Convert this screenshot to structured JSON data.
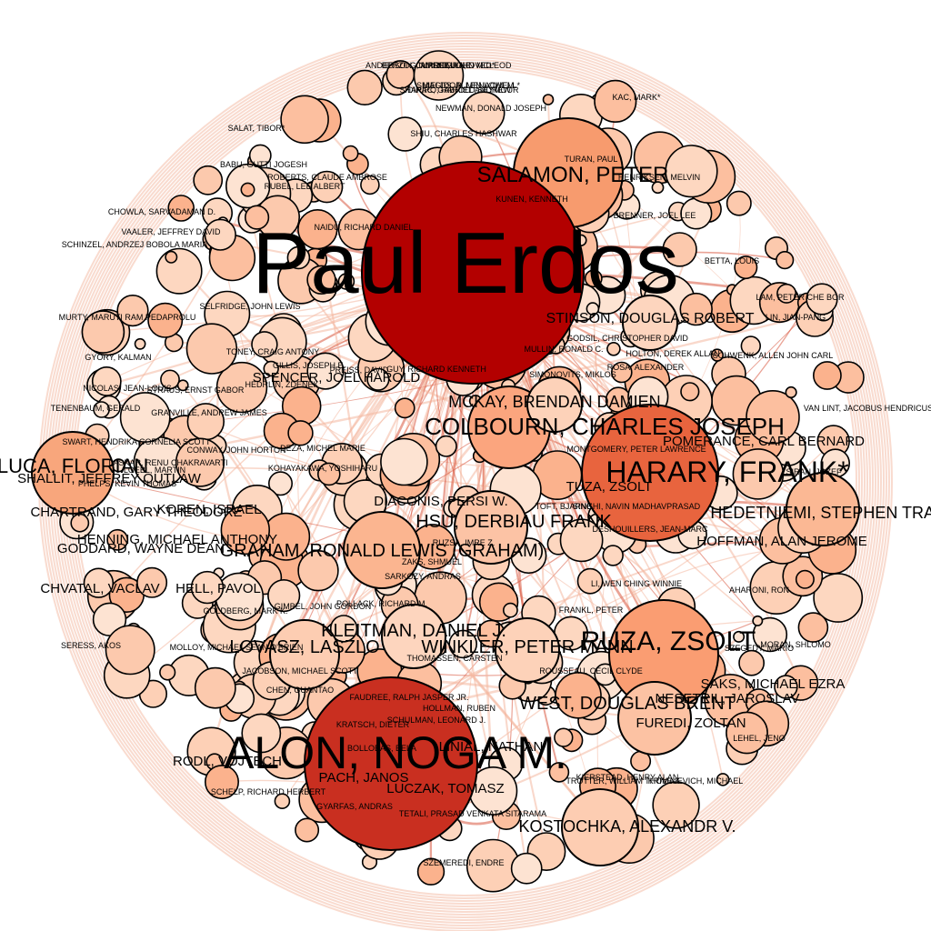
{
  "graph": {
    "center": {
      "label": "Paul Erdos",
      "color": "#b30000"
    },
    "colors": {
      "node_light": "#fdd7c0",
      "node_mid": "#fc9a70",
      "node_dark": "#e35a3a",
      "edge": "#f4b8a0"
    },
    "hubs": [
      {
        "label": "ALON, NOGA M.",
        "color": "#c92f20"
      },
      {
        "label": "SALAMON, PETER",
        "color": "#f79b6e"
      },
      {
        "label": "HARARY, FRANK*",
        "color": "#e8643e"
      },
      {
        "label": "COLBOURN, CHARLES JOSEPH",
        "color": "#fba57e"
      },
      {
        "label": "RUZA, ZSOLT",
        "color": "#fa9d72"
      },
      {
        "label": "LUCA, FLORIAN",
        "color": "#f8a67c"
      },
      {
        "label": "HEDETNIEMI, STEPHEN TRAV",
        "color": "#fbb894"
      },
      {
        "label": "WEST, DOUGLAS BRENT",
        "color": "#fcc2a3"
      },
      {
        "label": "GRAHAM, RONALD LEWIS (GRAHAM)",
        "color": "#fbb590"
      },
      {
        "label": "HSU, DERBIAU FRANK",
        "color": "#fcc3a5"
      },
      {
        "label": "KOSTOCHKA, ALEXANDR V.",
        "color": "#fdcdb2"
      },
      {
        "label": "LOVASZ, LASZLO",
        "color": "#fdcdb2"
      },
      {
        "label": "STINSON, DOUGLAS ROBERT",
        "color": "#fdd5be"
      },
      {
        "label": "KLEITMAN, DANIEL J.",
        "color": "#fdd5be"
      },
      {
        "label": "MCKAY, BRENDAN DAMIEN",
        "color": "#fdd2b9"
      },
      {
        "label": "WINKLER, PETER MANN",
        "color": "#fdd2b9"
      }
    ],
    "labels": [
      "SHIGHA, OVED*",
      "ANDERSON, JAMES MILNE",
      "SHIELDS, ALLEN LOWELL*",
      "SHAPIRO, HAROLD SEYMOUR",
      "KAC, MARK*",
      "SALAT, TIBOR*",
      "NEWMAN, DONALD JOSEPH",
      "SHIU, CHARLES HASHWAR",
      "HENRIKSEN, MELVIN",
      "RUBEL, LEE ALBERT",
      "BABU, GUTTI JOGESH",
      "ROBERTS, CLAUDE AMBROSE",
      "TURAN, PAUL",
      "CHOWLA, SARVADAMAN D.",
      "KUNEN, KENNETH",
      "SCHINZEL, ANDRZEJ BOBOLA MARIA",
      "VAALER, JEFFREY DAVID",
      "NAIDU, RICHARD DANIEL",
      "BRENNER, JOEL LEE",
      "BETTA, LOUIS",
      "LAM, PETER CHE BOR",
      "MURTY, MARUTI RAM PEDAPROLU",
      "SELFRIDGE, JOHN LEWIS",
      "GODSIL, CHRISTOPHER DAVID",
      "LIN, JIAN-PANG",
      "HOLTON, DEREK ALLAN",
      "MULLIN, RONALD C.",
      "SCHWENK, ALLEN JOHN CARL",
      "ROSA, ALEXANDER",
      "GYORY, KALMAN",
      "SPENCER, JOEL HAROLD",
      "GILLIS, JOSEPH E.",
      "PREISS, DAVID",
      "GUY, RICHARD KENNETH",
      "NICOLAS, JEAN-LOUIS",
      "STRAUS, ERNST GABOR",
      "HEDRLIN, ZDENEK",
      "LEHEL, JENO",
      "TENENBAUM, GERALD",
      "GRANVILLE, ANDREW JAMES",
      "VAN LINT, JACOBUS HENDRICUS",
      "SWART, HENDRIKA CORNELIA SCOTT",
      "POMERANCE, CARL BERNARD",
      "LASKAR, RENU CHAKRAVARTI",
      "MONTGOMERY, PETER LAWRENCE",
      "SIRAN, JOZEF",
      "CHARTRAND, GARY THEODORE",
      "SHALLIT, JEFFREY OUTLAW",
      "DIACONIS, PERSI W.",
      "DESHOUILLERS, JEAN-MARC",
      "HOFFMAN, ALAN JEROME",
      "GODDARD, WAYNE DEAN",
      "HENNING, MICHAEL ANTHONY",
      "KOREN, ISRAEL",
      "RUZSA, IMRE Z.",
      "LI, WEN CHING WINNIE",
      "CHVATAL, VACLAV",
      "HELL, PAVOL",
      "SARKOZY, ANDRAS",
      "ZAKS, SHMUEL",
      "AHARONI, RON",
      "GOLDBERG, MARK K.",
      "GIMBEL, JOHN GORDON",
      "POLLACK, RICHARD M.",
      "FRANKL, PETER",
      "SERESS, AKOS",
      "MOLLOY, MICHAEL SEAN O'BRIEN",
      "MORAN, SHLOMO",
      "SZEGEDY, MARIO",
      "JACOBSON, MICHAEL SCOTT",
      "ROUSSEAU, CECIL CLYDE",
      "SAKS, MICHAEL EZRA",
      "NESETRIL, JAROSLAV",
      "CHEN, GUANTAO",
      "FAUDREE, RALPH JASPER JR.",
      "SCHULMAN, LEONARD J.",
      "FUREDI, ZOLTAN",
      "RODL, VOJTECH",
      "KRATSCH, DIETER",
      "LINIAL, NATHAN",
      "PACH, JANOS",
      "TROTTER, WILLIAM THOMAS",
      "KRIVELEVICH, MICHAEL",
      "KIERSTEAD, HENRY ALAN",
      "SCHELP, RICHARD HERBERT",
      "GYARFAS, ANDRAS",
      "TETALI, PRASAD VENKATA SITARAMA",
      "SZEMEREDI, ENDRE",
      "LUCZAK, TOMASZ",
      "KOHAYAKAWA, YOSHIHARU",
      "TUZA, ZSOLT",
      "SINGHI, NAVIN MADHAVPRASAD",
      "TOFT, BJARNE",
      "PHELPS, KEVIN THOMAS",
      "THOMASSEN, CARSTEN",
      "HOLLMAN, RUBEN",
      "BOLLOBAS, BELA",
      "TONEY, CRAIG ANTONY",
      "LOEBL, MARTIN",
      "SIMONOVITS, MIKLOS",
      "DEZA, MICHEL MARIE",
      "CONWAY, JOHN HORTON",
      "CURRIE, JOHN MCLEOD",
      "BERZOG, MARCEL",
      "MAGIDOR, MENACHEM",
      "DIRAC, GABRIEL ANDREW"
    ],
    "unlabeled_nodes": 410
  }
}
